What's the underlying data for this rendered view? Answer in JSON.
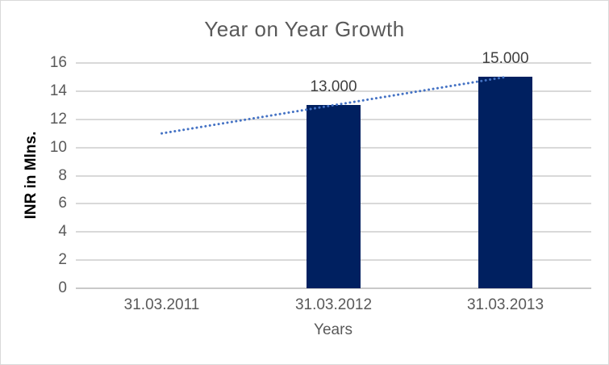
{
  "chart_data": {
    "type": "bar",
    "title": "Year on Year Growth",
    "xlabel": "Years",
    "ylabel": "INR in Mlns.",
    "categories": [
      "31.03.2011",
      "31.03.2012",
      "31.03.2013"
    ],
    "series": [
      {
        "name": "INR in Mlns.",
        "values": [
          null,
          13,
          15
        ]
      }
    ],
    "data_labels": [
      "",
      "13.000",
      "15.000"
    ],
    "yticks": [
      0,
      2,
      4,
      6,
      8,
      10,
      12,
      14,
      16
    ],
    "ylim": [
      0,
      16
    ],
    "grid": true,
    "legend": "none",
    "trendline": {
      "style": "dotted",
      "start_category_index": 0,
      "end_category_index": 2,
      "start_value": 11,
      "end_value": 15
    },
    "colors": {
      "bar": "#002060",
      "trendline": "#4472C4",
      "gridline": "#D9D9D9",
      "axis_line": "#C9C9C9",
      "title_text": "#595959",
      "tick_text": "#595959",
      "data_label_text": "#404040",
      "background": "#FFFFFF",
      "border": "#D9D9D9"
    }
  }
}
